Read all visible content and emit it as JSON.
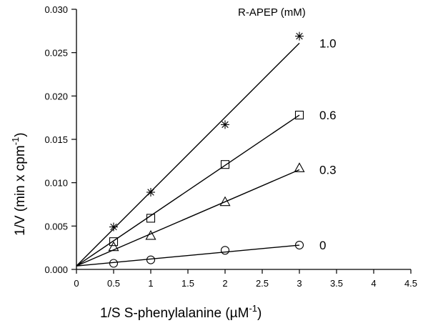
{
  "chart_data": {
    "type": "line",
    "xlabel": "1/S    S-phenylalanine (µM",
    "xlabel_sup": "-1",
    "xlabel_end": ")",
    "ylabel": "1/V    (min x cpm",
    "ylabel_sup": "-1",
    "ylabel_end": ")",
    "legend_title": "R-APEP (mM)",
    "xlim": [
      0,
      4.5
    ],
    "ylim": [
      0,
      0.03
    ],
    "x_ticks": [
      0,
      0.5,
      1,
      1.5,
      2,
      2.5,
      3,
      3.5,
      4,
      4.5
    ],
    "x_tick_labels": [
      "0",
      "0.5",
      "1",
      "1.5",
      "2",
      "2.5",
      "3",
      "3.5",
      "4",
      "4.5"
    ],
    "y_ticks": [
      0,
      0.005,
      0.01,
      0.015,
      0.02,
      0.025,
      0.03
    ],
    "y_tick_labels": [
      "0.000",
      "0.005",
      "0.010",
      "0.015",
      "0.020",
      "0.025",
      "0.030"
    ],
    "grid": false,
    "series": [
      {
        "name": "1.0",
        "marker": "asterisk",
        "x": [
          0.5,
          1,
          2,
          3
        ],
        "y": [
          0.0049,
          0.0089,
          0.0167,
          0.0269
        ],
        "fit": {
          "x": [
            0,
            3
          ],
          "y": [
            0.0004,
            0.0261
          ]
        }
      },
      {
        "name": "0.6",
        "marker": "square",
        "x": [
          0.5,
          1,
          2,
          3
        ],
        "y": [
          0.0032,
          0.0059,
          0.0121,
          0.0178
        ],
        "fit": {
          "x": [
            0,
            3
          ],
          "y": [
            0.0004,
            0.0178
          ]
        }
      },
      {
        "name": "0.3",
        "marker": "triangle",
        "x": [
          0.5,
          1,
          2,
          3
        ],
        "y": [
          0.0026,
          0.0039,
          0.0078,
          0.0117
        ],
        "fit": {
          "x": [
            0,
            3
          ],
          "y": [
            0.0004,
            0.0115
          ]
        }
      },
      {
        "name": "0",
        "marker": "circle",
        "x": [
          0.5,
          1,
          2,
          3
        ],
        "y": [
          0.0007,
          0.0011,
          0.0022,
          0.0028
        ],
        "fit": {
          "x": [
            0,
            3
          ],
          "y": [
            0.0004,
            0.0028
          ]
        }
      }
    ]
  }
}
